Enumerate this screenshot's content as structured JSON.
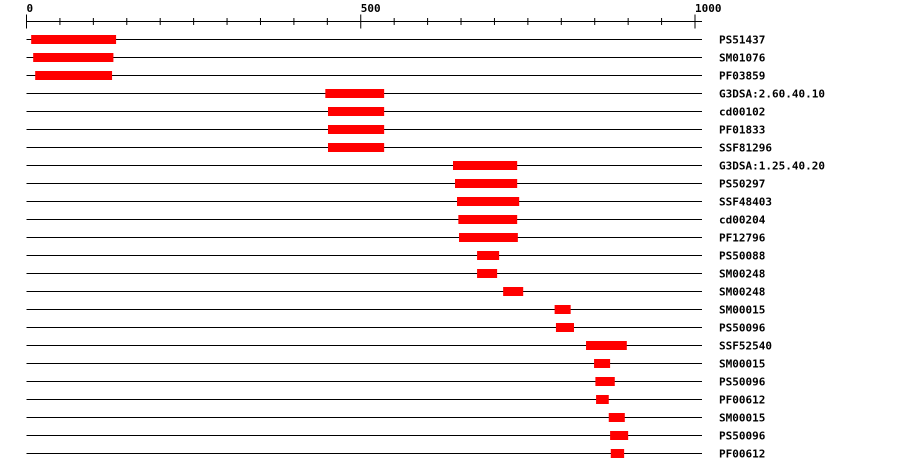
{
  "axis": {
    "min": 0,
    "max": 1000,
    "tick_step": 50,
    "labels": [
      "0",
      "500",
      "1000"
    ],
    "label_values": [
      0,
      500,
      1000
    ]
  },
  "colors": {
    "domain": "#ff0000",
    "line": "#000000"
  },
  "tracks": [
    {
      "name": "PS51437",
      "start": 7,
      "end": 134
    },
    {
      "name": "SM01076",
      "start": 10,
      "end": 130
    },
    {
      "name": "PF03859",
      "start": 13,
      "end": 128
    },
    {
      "name": "G3DSA:2.60.40.10",
      "start": 447,
      "end": 535
    },
    {
      "name": "cd00102",
      "start": 451,
      "end": 535
    },
    {
      "name": "PF01833",
      "start": 451,
      "end": 535
    },
    {
      "name": "SSF81296",
      "start": 451,
      "end": 535
    },
    {
      "name": "G3DSA:1.25.40.20",
      "start": 638,
      "end": 734
    },
    {
      "name": "PS50297",
      "start": 641,
      "end": 734
    },
    {
      "name": "SSF48403",
      "start": 644,
      "end": 737
    },
    {
      "name": "cd00204",
      "start": 646,
      "end": 734
    },
    {
      "name": "PF12796",
      "start": 647,
      "end": 735
    },
    {
      "name": "PS50088",
      "start": 674,
      "end": 707
    },
    {
      "name": "SM00248",
      "start": 674,
      "end": 704
    },
    {
      "name": "SM00248",
      "start": 713,
      "end": 743
    },
    {
      "name": "SM00015",
      "start": 790,
      "end": 814
    },
    {
      "name": "PS50096",
      "start": 792,
      "end": 819
    },
    {
      "name": "SSF52540",
      "start": 837,
      "end": 898
    },
    {
      "name": "SM00015",
      "start": 849,
      "end": 873
    },
    {
      "name": "PS50096",
      "start": 851,
      "end": 880
    },
    {
      "name": "PF00612",
      "start": 852,
      "end": 871
    },
    {
      "name": "SM00015",
      "start": 871,
      "end": 895
    },
    {
      "name": "PS50096",
      "start": 873,
      "end": 900
    },
    {
      "name": "PF00612",
      "start": 874,
      "end": 894
    }
  ]
}
